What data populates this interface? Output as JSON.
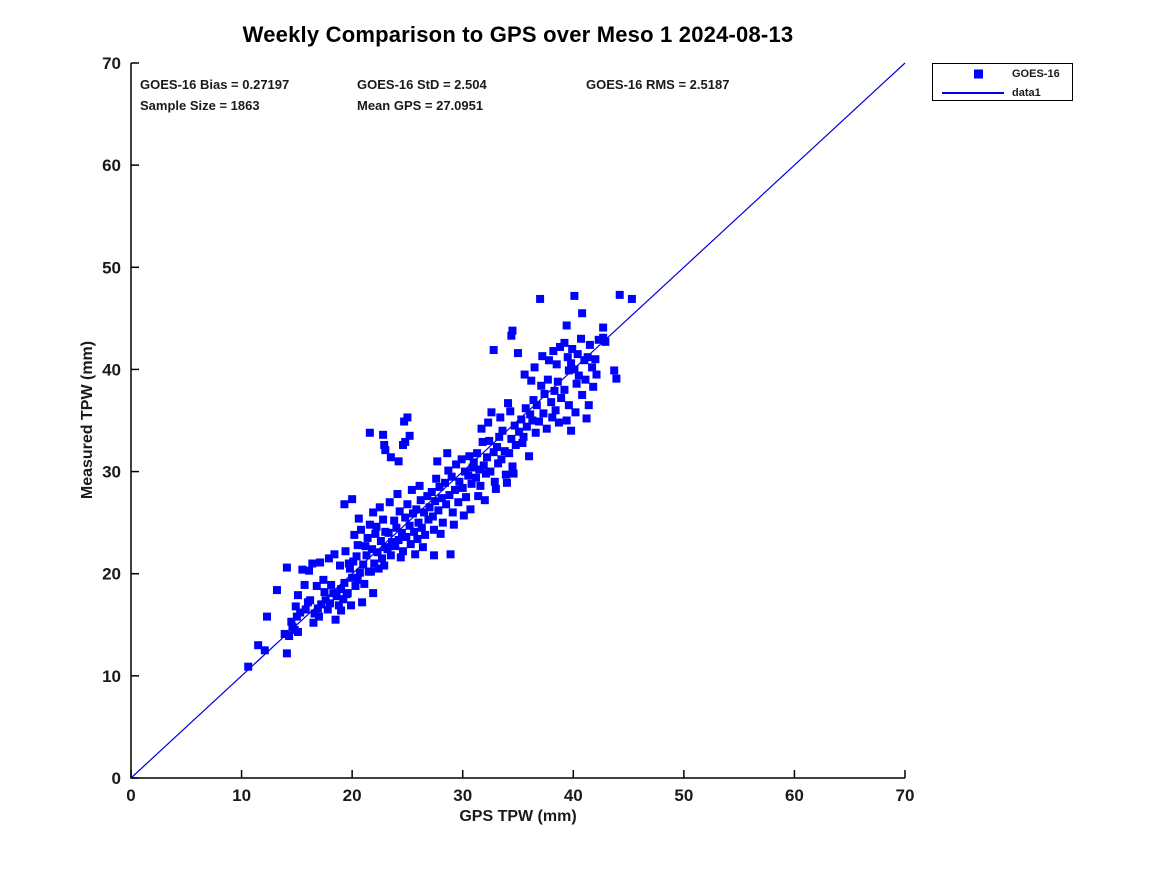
{
  "title": "Weekly Comparison to GPS over Meso 1 2024-08-13",
  "stats": {
    "bias": "GOES-16 Bias = 0.27197",
    "std": "GOES-16 StD = 2.504",
    "rms": "GOES-16 RMS = 2.5187",
    "sample_size": "Sample Size = 1863",
    "mean_gps": "Mean GPS = 27.0951"
  },
  "legend": {
    "items": [
      {
        "label": "GOES-16",
        "marker": "square-icon"
      },
      {
        "label": "data1",
        "marker": "line-icon"
      }
    ]
  },
  "colors": {
    "marker": "#0000ff",
    "line": "#0000dd",
    "axis": "#000000",
    "text": "#1a1a1a"
  },
  "chart_data": {
    "type": "scatter",
    "title": "Weekly Comparison to GPS over Meso 1 2024-08-13",
    "xlabel": "GPS TPW (mm)",
    "ylabel": "Measured TPW (mm)",
    "xlim": [
      0,
      70
    ],
    "ylim": [
      0,
      70
    ],
    "xticks": [
      0,
      10,
      20,
      30,
      40,
      50,
      60,
      70
    ],
    "yticks": [
      0,
      10,
      20,
      30,
      40,
      50,
      60,
      70
    ],
    "grid": false,
    "legend_position": "top-right-outside",
    "marker_size_px": 8,
    "series": [
      {
        "name": "GOES-16",
        "type": "scatter",
        "marker": "square",
        "color": "#0000ff",
        "points": [
          [
            10.6,
            10.9
          ],
          [
            11.5,
            13.0
          ],
          [
            12.1,
            12.5
          ],
          [
            14.1,
            12.2
          ],
          [
            12.3,
            15.8
          ],
          [
            13.2,
            18.4
          ],
          [
            14.1,
            20.6
          ],
          [
            14.6,
            14.8
          ],
          [
            15.1,
            14.3
          ],
          [
            15.1,
            17.9
          ],
          [
            14.3,
            13.9
          ],
          [
            14.8,
            14.5
          ],
          [
            13.9,
            14.1
          ],
          [
            14.5,
            15.3
          ],
          [
            15.0,
            15.8
          ],
          [
            15.3,
            16.2
          ],
          [
            14.9,
            16.8
          ],
          [
            15.5,
            20.4
          ],
          [
            15.8,
            16.5
          ],
          [
            16.0,
            17.2
          ],
          [
            16.2,
            17.4
          ],
          [
            16.4,
            21.0
          ],
          [
            16.6,
            16.1
          ],
          [
            16.9,
            16.6
          ],
          [
            17.1,
            21.1
          ],
          [
            17.2,
            17.0
          ],
          [
            17.4,
            19.4
          ],
          [
            17.6,
            17.4
          ],
          [
            17.8,
            16.5
          ],
          [
            18.0,
            17.1
          ],
          [
            18.1,
            18.9
          ],
          [
            18.3,
            18.1
          ],
          [
            18.5,
            15.5
          ],
          [
            18.6,
            17.8
          ],
          [
            18.8,
            16.9
          ],
          [
            19.0,
            16.4
          ],
          [
            19.0,
            18.5
          ],
          [
            17.0,
            15.8
          ],
          [
            16.5,
            15.2
          ],
          [
            17.9,
            21.5
          ],
          [
            18.4,
            21.9
          ],
          [
            16.1,
            20.3
          ],
          [
            15.7,
            18.9
          ],
          [
            18.9,
            20.8
          ],
          [
            17.5,
            18.2
          ],
          [
            16.8,
            18.8
          ],
          [
            19.2,
            17.5
          ],
          [
            19.3,
            19.1
          ],
          [
            19.5,
            18.0
          ],
          [
            19.6,
            18.1
          ],
          [
            19.8,
            20.5
          ],
          [
            19.9,
            16.9
          ],
          [
            20.0,
            19.6
          ],
          [
            20.1,
            21.2
          ],
          [
            20.3,
            18.8
          ],
          [
            20.5,
            19.4
          ],
          [
            20.5,
            22.8
          ],
          [
            20.7,
            20.1
          ],
          [
            20.9,
            17.2
          ],
          [
            21.0,
            20.9
          ],
          [
            21.1,
            19.0
          ],
          [
            21.3,
            21.8
          ],
          [
            21.4,
            23.5
          ],
          [
            21.5,
            20.2
          ],
          [
            21.7,
            20.2
          ],
          [
            21.8,
            22.4
          ],
          [
            21.9,
            18.1
          ],
          [
            22.0,
            21.0
          ],
          [
            22.1,
            23.9
          ],
          [
            22.3,
            22.1
          ],
          [
            22.4,
            20.5
          ],
          [
            22.6,
            23.2
          ],
          [
            22.7,
            21.5
          ],
          [
            22.9,
            20.8
          ],
          [
            23.0,
            22.6
          ],
          [
            20.2,
            23.8
          ],
          [
            19.4,
            22.2
          ],
          [
            20.8,
            24.3
          ],
          [
            21.6,
            24.8
          ],
          [
            22.2,
            24.6
          ],
          [
            22.8,
            25.3
          ],
          [
            19.7,
            21.0
          ],
          [
            20.4,
            21.7
          ],
          [
            21.2,
            22.7
          ],
          [
            23.0,
            24.1
          ],
          [
            22.5,
            26.5
          ],
          [
            21.9,
            26.0
          ],
          [
            20.6,
            25.4
          ],
          [
            19.3,
            26.8
          ],
          [
            20.0,
            27.3
          ],
          [
            23.2,
            22.4
          ],
          [
            23.3,
            24.0
          ],
          [
            23.5,
            21.8
          ],
          [
            23.6,
            23.1
          ],
          [
            23.8,
            25.2
          ],
          [
            23.9,
            22.7
          ],
          [
            24.0,
            24.5
          ],
          [
            24.2,
            23.3
          ],
          [
            24.3,
            26.1
          ],
          [
            24.5,
            24.0
          ],
          [
            24.6,
            22.2
          ],
          [
            24.8,
            25.5
          ],
          [
            24.9,
            23.6
          ],
          [
            25.0,
            26.8
          ],
          [
            25.2,
            24.7
          ],
          [
            25.3,
            22.9
          ],
          [
            25.5,
            25.9
          ],
          [
            25.6,
            24.1
          ],
          [
            25.8,
            26.3
          ],
          [
            25.9,
            23.4
          ],
          [
            26.0,
            25.0
          ],
          [
            26.2,
            27.2
          ],
          [
            26.3,
            24.5
          ],
          [
            26.5,
            26.0
          ],
          [
            26.6,
            23.8
          ],
          [
            26.8,
            27.6
          ],
          [
            26.9,
            25.3
          ],
          [
            23.4,
            27.0
          ],
          [
            24.1,
            27.8
          ],
          [
            25.4,
            28.2
          ],
          [
            26.1,
            28.6
          ],
          [
            24.4,
            21.6
          ],
          [
            25.7,
            21.9
          ],
          [
            26.4,
            22.6
          ],
          [
            21.6,
            33.8
          ],
          [
            22.8,
            33.6
          ],
          [
            22.9,
            32.6
          ],
          [
            23.0,
            32.1
          ],
          [
            24.7,
            34.9
          ],
          [
            24.6,
            32.6
          ],
          [
            24.8,
            32.9
          ],
          [
            25.0,
            35.3
          ],
          [
            25.2,
            33.5
          ],
          [
            23.5,
            31.4
          ],
          [
            24.2,
            31.0
          ],
          [
            27.0,
            26.5
          ],
          [
            27.2,
            28.0
          ],
          [
            27.3,
            25.6
          ],
          [
            27.5,
            27.1
          ],
          [
            27.6,
            29.3
          ],
          [
            27.8,
            26.2
          ],
          [
            27.9,
            28.5
          ],
          [
            28.1,
            27.4
          ],
          [
            28.2,
            25.0
          ],
          [
            28.4,
            28.9
          ],
          [
            28.5,
            26.8
          ],
          [
            28.7,
            30.1
          ],
          [
            28.8,
            27.7
          ],
          [
            29.0,
            29.5
          ],
          [
            29.1,
            26.0
          ],
          [
            29.3,
            28.2
          ],
          [
            29.4,
            30.7
          ],
          [
            29.6,
            27.0
          ],
          [
            29.7,
            29.0
          ],
          [
            29.9,
            31.2
          ],
          [
            30.0,
            28.4
          ],
          [
            30.2,
            30.0
          ],
          [
            30.3,
            27.5
          ],
          [
            30.5,
            29.6
          ],
          [
            30.6,
            31.5
          ],
          [
            30.8,
            28.8
          ],
          [
            30.9,
            30.4
          ],
          [
            27.4,
            24.3
          ],
          [
            28.0,
            23.9
          ],
          [
            29.2,
            24.8
          ],
          [
            30.1,
            25.7
          ],
          [
            28.6,
            31.8
          ],
          [
            27.7,
            31.0
          ],
          [
            30.7,
            26.3
          ],
          [
            27.4,
            21.8
          ],
          [
            28.9,
            21.9
          ],
          [
            31.0,
            30.9
          ],
          [
            31.2,
            29.4
          ],
          [
            31.3,
            31.8
          ],
          [
            31.5,
            30.2
          ],
          [
            31.6,
            28.6
          ],
          [
            31.8,
            32.9
          ],
          [
            31.9,
            30.6
          ],
          [
            32.1,
            29.8
          ],
          [
            32.2,
            31.4
          ],
          [
            32.4,
            33.0
          ],
          [
            32.5,
            30.0
          ],
          [
            32.6,
            35.8
          ],
          [
            32.8,
            31.9
          ],
          [
            32.9,
            29.0
          ],
          [
            33.1,
            32.4
          ],
          [
            33.2,
            30.8
          ],
          [
            33.3,
            33.4
          ],
          [
            33.5,
            31.2
          ],
          [
            33.6,
            34.0
          ],
          [
            33.8,
            32.0
          ],
          [
            33.9,
            29.7
          ],
          [
            34.1,
            36.7
          ],
          [
            34.2,
            31.8
          ],
          [
            34.4,
            33.2
          ],
          [
            34.5,
            30.5
          ],
          [
            34.7,
            34.5
          ],
          [
            34.8,
            32.6
          ],
          [
            31.4,
            27.6
          ],
          [
            32.0,
            27.2
          ],
          [
            33.0,
            28.3
          ],
          [
            34.0,
            28.9
          ],
          [
            34.6,
            29.8
          ],
          [
            31.7,
            34.2
          ],
          [
            32.3,
            34.8
          ],
          [
            33.4,
            35.3
          ],
          [
            34.3,
            35.9
          ],
          [
            32.8,
            41.9
          ],
          [
            35.0,
            41.6
          ],
          [
            35.1,
            33.9
          ],
          [
            35.3,
            35.1
          ],
          [
            35.4,
            32.8
          ],
          [
            35.5,
            33.4
          ],
          [
            35.7,
            36.2
          ],
          [
            35.8,
            34.4
          ],
          [
            36.0,
            31.5
          ],
          [
            36.1,
            35.6
          ],
          [
            36.3,
            35.0
          ],
          [
            36.4,
            37.0
          ],
          [
            36.6,
            33.8
          ],
          [
            36.7,
            36.5
          ],
          [
            36.9,
            34.9
          ],
          [
            37.0,
            46.9
          ],
          [
            37.1,
            38.4
          ],
          [
            37.3,
            35.7
          ],
          [
            37.4,
            37.6
          ],
          [
            37.6,
            34.2
          ],
          [
            37.7,
            39.0
          ],
          [
            37.8,
            40.9
          ],
          [
            38.0,
            36.8
          ],
          [
            38.1,
            35.3
          ],
          [
            38.3,
            37.9
          ],
          [
            38.4,
            36.0
          ],
          [
            38.6,
            38.8
          ],
          [
            38.7,
            34.8
          ],
          [
            38.9,
            37.2
          ],
          [
            35.6,
            39.5
          ],
          [
            36.5,
            40.2
          ],
          [
            37.2,
            41.3
          ],
          [
            38.2,
            41.8
          ],
          [
            36.2,
            38.9
          ],
          [
            38.5,
            40.5
          ],
          [
            38.8,
            42.2
          ],
          [
            34.5,
            43.8
          ],
          [
            34.4,
            43.3
          ],
          [
            39.2,
            42.6
          ],
          [
            39.2,
            38.0
          ],
          [
            39.4,
            44.3
          ],
          [
            39.4,
            35.0
          ],
          [
            39.5,
            41.2
          ],
          [
            39.6,
            39.9
          ],
          [
            39.6,
            36.5
          ],
          [
            39.8,
            40.6
          ],
          [
            39.9,
            42.0
          ],
          [
            40.1,
            47.2
          ],
          [
            40.1,
            40.0
          ],
          [
            40.3,
            38.6
          ],
          [
            40.4,
            41.5
          ],
          [
            40.5,
            39.4
          ],
          [
            40.7,
            43.0
          ],
          [
            40.8,
            45.5
          ],
          [
            40.8,
            37.5
          ],
          [
            41.0,
            40.9
          ],
          [
            41.1,
            39.0
          ],
          [
            41.3,
            41.2
          ],
          [
            41.4,
            36.5
          ],
          [
            41.5,
            42.4
          ],
          [
            41.7,
            40.2
          ],
          [
            41.8,
            38.3
          ],
          [
            42.0,
            41.0
          ],
          [
            42.1,
            39.5
          ],
          [
            42.3,
            42.9
          ],
          [
            42.7,
            44.1
          ],
          [
            42.7,
            43.1
          ],
          [
            42.9,
            42.7
          ],
          [
            40.2,
            35.8
          ],
          [
            41.2,
            35.2
          ],
          [
            39.8,
            34.0
          ],
          [
            44.2,
            47.3
          ],
          [
            45.3,
            46.9
          ],
          [
            43.7,
            39.9
          ],
          [
            43.9,
            39.1
          ]
        ]
      },
      {
        "name": "data1",
        "type": "line",
        "color": "#0000dd",
        "points": [
          [
            0,
            0
          ],
          [
            70,
            70
          ]
        ]
      }
    ]
  }
}
